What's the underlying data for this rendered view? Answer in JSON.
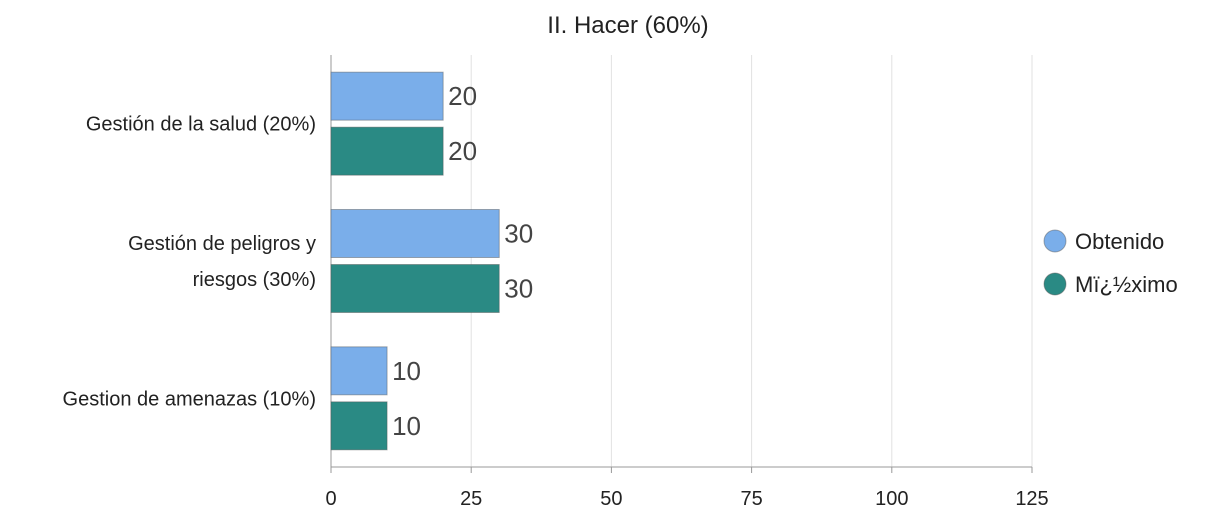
{
  "chart_data": {
    "type": "bar",
    "orientation": "horizontal",
    "title": "II. Hacer (60%)",
    "categories": [
      "Gestión de la salud (20%)",
      "Gestión de peligros y riesgos (30%)",
      "Gestion de amenazas (10%)"
    ],
    "series": [
      {
        "name": "Obtenido",
        "values": [
          20,
          30,
          10
        ],
        "color": "#7aaeea"
      },
      {
        "name": "Mï¿½ximo",
        "values": [
          20,
          30,
          10
        ],
        "color": "#2a8a84"
      }
    ],
    "xlim": [
      0,
      125
    ],
    "xticks": [
      0,
      25,
      50,
      75,
      100,
      125
    ],
    "grid": true,
    "legend_position": "right",
    "data_labels": true
  }
}
